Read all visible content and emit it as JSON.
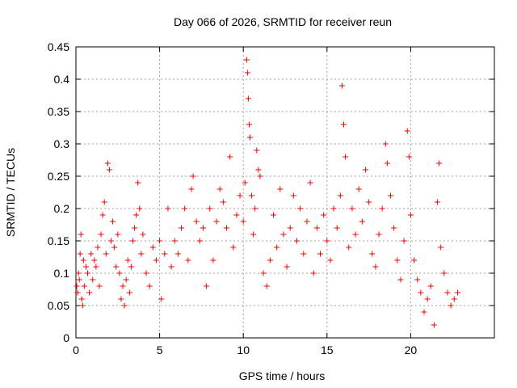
{
  "chart_data": {
    "type": "scatter",
    "title": "Day 066 of 2026, SRMTID for receiver reun",
    "xlabel": "GPS time / hours",
    "ylabel": "SRMTID / TECUs",
    "xlim": [
      0,
      25
    ],
    "ylim": [
      0,
      0.45
    ],
    "grid": true,
    "marker": "+",
    "x_ticks": [
      0,
      5,
      10,
      15,
      20
    ],
    "x_tick_labels": [
      "0",
      "5",
      "10",
      "15",
      "20"
    ],
    "y_ticks": [
      0,
      0.05,
      0.1,
      0.15,
      0.2,
      0.25,
      0.3,
      0.35,
      0.4,
      0.45
    ],
    "y_tick_labels": [
      "0",
      "0.05",
      "0.1",
      "0.15",
      "0.2",
      "0.25",
      "0.3",
      "0.35",
      "0.4",
      "0.45"
    ],
    "series": [
      {
        "name": "SRMTID",
        "color": "#ff0000",
        "points": [
          [
            0.05,
            0.08
          ],
          [
            0.1,
            0.07
          ],
          [
            0.15,
            0.1
          ],
          [
            0.2,
            0.09
          ],
          [
            0.25,
            0.13
          ],
          [
            0.3,
            0.16
          ],
          [
            0.35,
            0.06
          ],
          [
            0.4,
            0.05
          ],
          [
            0.45,
            0.12
          ],
          [
            0.5,
            0.08
          ],
          [
            0.6,
            0.11
          ],
          [
            0.7,
            0.1
          ],
          [
            0.8,
            0.07
          ],
          [
            0.9,
            0.13
          ],
          [
            1.0,
            0.09
          ],
          [
            1.1,
            0.12
          ],
          [
            1.2,
            0.11
          ],
          [
            1.3,
            0.14
          ],
          [
            1.4,
            0.08
          ],
          [
            1.5,
            0.16
          ],
          [
            1.6,
            0.19
          ],
          [
            1.7,
            0.21
          ],
          [
            1.8,
            0.13
          ],
          [
            1.9,
            0.27
          ],
          [
            2.0,
            0.26
          ],
          [
            2.1,
            0.15
          ],
          [
            2.2,
            0.18
          ],
          [
            2.3,
            0.14
          ],
          [
            2.4,
            0.11
          ],
          [
            2.5,
            0.16
          ],
          [
            2.6,
            0.1
          ],
          [
            2.7,
            0.06
          ],
          [
            2.8,
            0.08
          ],
          [
            2.9,
            0.05
          ],
          [
            3.0,
            0.09
          ],
          [
            3.1,
            0.12
          ],
          [
            3.2,
            0.07
          ],
          [
            3.3,
            0.11
          ],
          [
            3.4,
            0.15
          ],
          [
            3.5,
            0.17
          ],
          [
            3.6,
            0.19
          ],
          [
            3.7,
            0.24
          ],
          [
            3.8,
            0.2
          ],
          [
            3.9,
            0.13
          ],
          [
            4.0,
            0.16
          ],
          [
            4.2,
            0.1
          ],
          [
            4.4,
            0.08
          ],
          [
            4.6,
            0.14
          ],
          [
            4.8,
            0.12
          ],
          [
            5.0,
            0.15
          ],
          [
            5.1,
            0.06
          ],
          [
            5.3,
            0.13
          ],
          [
            5.5,
            0.2
          ],
          [
            5.7,
            0.11
          ],
          [
            5.9,
            0.15
          ],
          [
            6.1,
            0.13
          ],
          [
            6.3,
            0.17
          ],
          [
            6.5,
            0.2
          ],
          [
            6.7,
            0.12
          ],
          [
            6.9,
            0.23
          ],
          [
            7.0,
            0.25
          ],
          [
            7.2,
            0.18
          ],
          [
            7.4,
            0.15
          ],
          [
            7.6,
            0.17
          ],
          [
            7.8,
            0.08
          ],
          [
            8.0,
            0.2
          ],
          [
            8.2,
            0.12
          ],
          [
            8.4,
            0.18
          ],
          [
            8.6,
            0.23
          ],
          [
            8.8,
            0.21
          ],
          [
            9.0,
            0.17
          ],
          [
            9.2,
            0.28
          ],
          [
            9.4,
            0.14
          ],
          [
            9.6,
            0.19
          ],
          [
            9.8,
            0.22
          ],
          [
            10.0,
            0.18
          ],
          [
            10.1,
            0.24
          ],
          [
            10.2,
            0.43
          ],
          [
            10.25,
            0.41
          ],
          [
            10.3,
            0.37
          ],
          [
            10.35,
            0.33
          ],
          [
            10.4,
            0.31
          ],
          [
            10.5,
            0.22
          ],
          [
            10.6,
            0.16
          ],
          [
            10.7,
            0.2
          ],
          [
            10.8,
            0.29
          ],
          [
            10.9,
            0.26
          ],
          [
            11.0,
            0.25
          ],
          [
            11.2,
            0.1
          ],
          [
            11.4,
            0.08
          ],
          [
            11.6,
            0.12
          ],
          [
            11.8,
            0.19
          ],
          [
            12.0,
            0.14
          ],
          [
            12.2,
            0.23
          ],
          [
            12.4,
            0.16
          ],
          [
            12.6,
            0.11
          ],
          [
            12.8,
            0.17
          ],
          [
            13.0,
            0.22
          ],
          [
            13.2,
            0.15
          ],
          [
            13.4,
            0.2
          ],
          [
            13.6,
            0.13
          ],
          [
            13.8,
            0.18
          ],
          [
            14.0,
            0.24
          ],
          [
            14.2,
            0.1
          ],
          [
            14.4,
            0.17
          ],
          [
            14.6,
            0.13
          ],
          [
            14.8,
            0.19
          ],
          [
            15.0,
            0.15
          ],
          [
            15.2,
            0.12
          ],
          [
            15.4,
            0.2
          ],
          [
            15.6,
            0.17
          ],
          [
            15.8,
            0.22
          ],
          [
            15.9,
            0.39
          ],
          [
            16.0,
            0.33
          ],
          [
            16.1,
            0.28
          ],
          [
            16.3,
            0.14
          ],
          [
            16.5,
            0.2
          ],
          [
            16.7,
            0.16
          ],
          [
            16.9,
            0.23
          ],
          [
            17.1,
            0.18
          ],
          [
            17.3,
            0.26
          ],
          [
            17.5,
            0.21
          ],
          [
            17.7,
            0.13
          ],
          [
            17.9,
            0.11
          ],
          [
            18.1,
            0.16
          ],
          [
            18.3,
            0.2
          ],
          [
            18.5,
            0.3
          ],
          [
            18.6,
            0.27
          ],
          [
            18.8,
            0.22
          ],
          [
            19.0,
            0.17
          ],
          [
            19.2,
            0.12
          ],
          [
            19.4,
            0.09
          ],
          [
            19.6,
            0.15
          ],
          [
            19.8,
            0.32
          ],
          [
            19.9,
            0.28
          ],
          [
            20.0,
            0.19
          ],
          [
            20.2,
            0.12
          ],
          [
            20.4,
            0.09
          ],
          [
            20.6,
            0.07
          ],
          [
            20.8,
            0.04
          ],
          [
            21.0,
            0.06
          ],
          [
            21.2,
            0.08
          ],
          [
            21.4,
            0.02
          ],
          [
            21.6,
            0.21
          ],
          [
            21.7,
            0.27
          ],
          [
            21.8,
            0.14
          ],
          [
            22.0,
            0.1
          ],
          [
            22.2,
            0.07
          ],
          [
            22.4,
            0.05
          ],
          [
            22.6,
            0.06
          ],
          [
            22.8,
            0.07
          ]
        ]
      }
    ]
  }
}
